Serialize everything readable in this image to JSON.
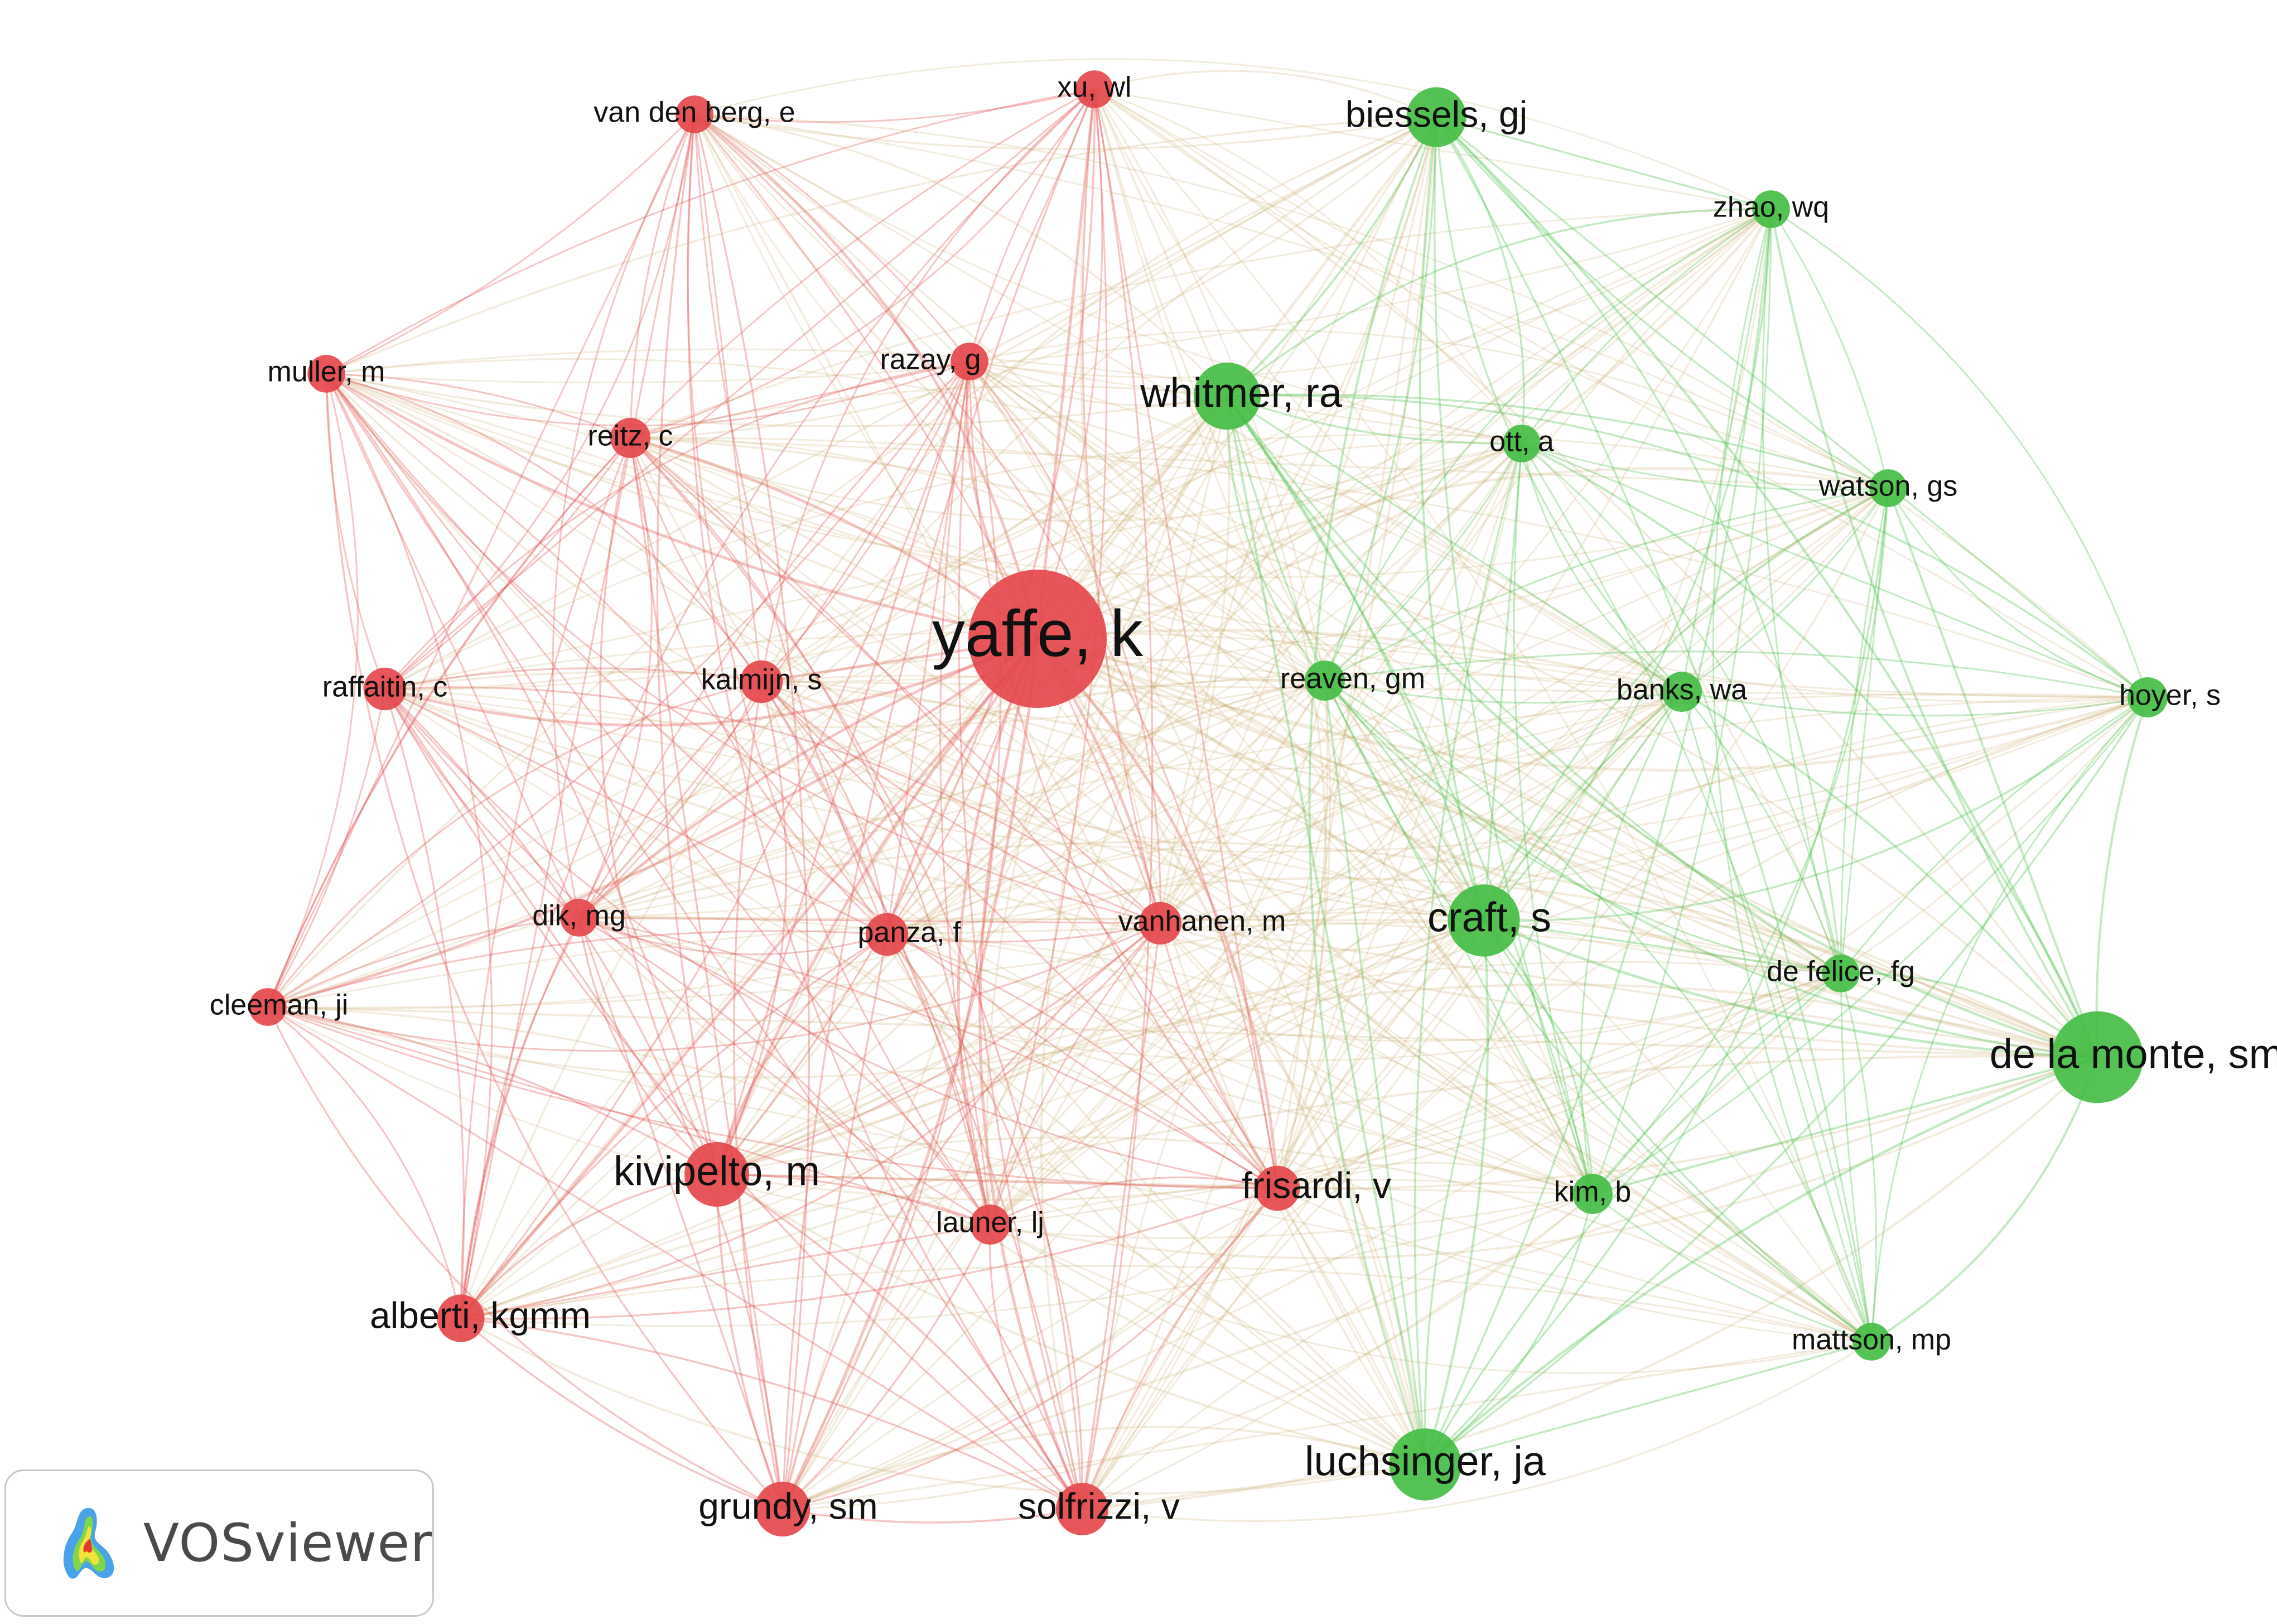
{
  "cluster_colors": {
    "red": "#e4484c",
    "green": "#45bd45"
  },
  "brand": {
    "name": "VOSviewer",
    "logo_icon": "vosviewer-logo-icon"
  },
  "network": {
    "nodes": [
      {
        "id": "yaffe",
        "label": "yaffe, k",
        "cluster": "red",
        "weight": 100
      },
      {
        "id": "kivipelto",
        "label": "kivipelto, m",
        "cluster": "red",
        "weight": 40
      },
      {
        "id": "grundy",
        "label": "grundy, sm",
        "cluster": "red",
        "weight": 32
      },
      {
        "id": "solfrizzi",
        "label": "solfrizzi, v",
        "cluster": "red",
        "weight": 30
      },
      {
        "id": "alberti",
        "label": "alberti, kgmm",
        "cluster": "red",
        "weight": 26
      },
      {
        "id": "frisardi",
        "label": "frisardi, v",
        "cluster": "red",
        "weight": 24
      },
      {
        "id": "panza",
        "label": "panza, f",
        "cluster": "red",
        "weight": 22
      },
      {
        "id": "vanhanen",
        "label": "vanhanen, m",
        "cluster": "red",
        "weight": 22
      },
      {
        "id": "launer",
        "label": "launer, lj",
        "cluster": "red",
        "weight": 20
      },
      {
        "id": "kalmijn",
        "label": "kalmijn, s",
        "cluster": "red",
        "weight": 22
      },
      {
        "id": "raffaitin",
        "label": "raffaitin, c",
        "cluster": "red",
        "weight": 22
      },
      {
        "id": "reitz",
        "label": "reitz, c",
        "cluster": "red",
        "weight": 20
      },
      {
        "id": "muller",
        "label": "muller, m",
        "cluster": "red",
        "weight": 18
      },
      {
        "id": "vandenberg",
        "label": "van den berg, e",
        "cluster": "red",
        "weight": 18
      },
      {
        "id": "xu",
        "label": "xu, wl",
        "cluster": "red",
        "weight": 18
      },
      {
        "id": "razay",
        "label": "razay, g",
        "cluster": "red",
        "weight": 18
      },
      {
        "id": "dik",
        "label": "dik, mg",
        "cluster": "red",
        "weight": 18
      },
      {
        "id": "cleeman",
        "label": "cleeman, ji",
        "cluster": "red",
        "weight": 18
      },
      {
        "id": "whitmer",
        "label": "whitmer, ra",
        "cluster": "green",
        "weight": 42
      },
      {
        "id": "biessels",
        "label": "biessels, gj",
        "cluster": "green",
        "weight": 36
      },
      {
        "id": "craft",
        "label": "craft, s",
        "cluster": "green",
        "weight": 46
      },
      {
        "id": "delamonte",
        "label": "de la monte, sm",
        "cluster": "green",
        "weight": 62
      },
      {
        "id": "luchsinger",
        "label": "luchsinger, ja",
        "cluster": "green",
        "weight": 46
      },
      {
        "id": "zhao",
        "label": "zhao, wq",
        "cluster": "green",
        "weight": 18
      },
      {
        "id": "ott",
        "label": "ott, a",
        "cluster": "green",
        "weight": 18
      },
      {
        "id": "watson",
        "label": "watson, gs",
        "cluster": "green",
        "weight": 18
      },
      {
        "id": "reaven",
        "label": "reaven, gm",
        "cluster": "green",
        "weight": 20
      },
      {
        "id": "banks",
        "label": "banks, wa",
        "cluster": "green",
        "weight": 20
      },
      {
        "id": "hoyer",
        "label": "hoyer, s",
        "cluster": "green",
        "weight": 20
      },
      {
        "id": "defelice",
        "label": "de felice, fg",
        "cluster": "green",
        "weight": 18
      },
      {
        "id": "kim",
        "label": "kim, b",
        "cluster": "green",
        "weight": 20
      },
      {
        "id": "mattson",
        "label": "mattson, mp",
        "cluster": "green",
        "weight": 18
      }
    ]
  }
}
